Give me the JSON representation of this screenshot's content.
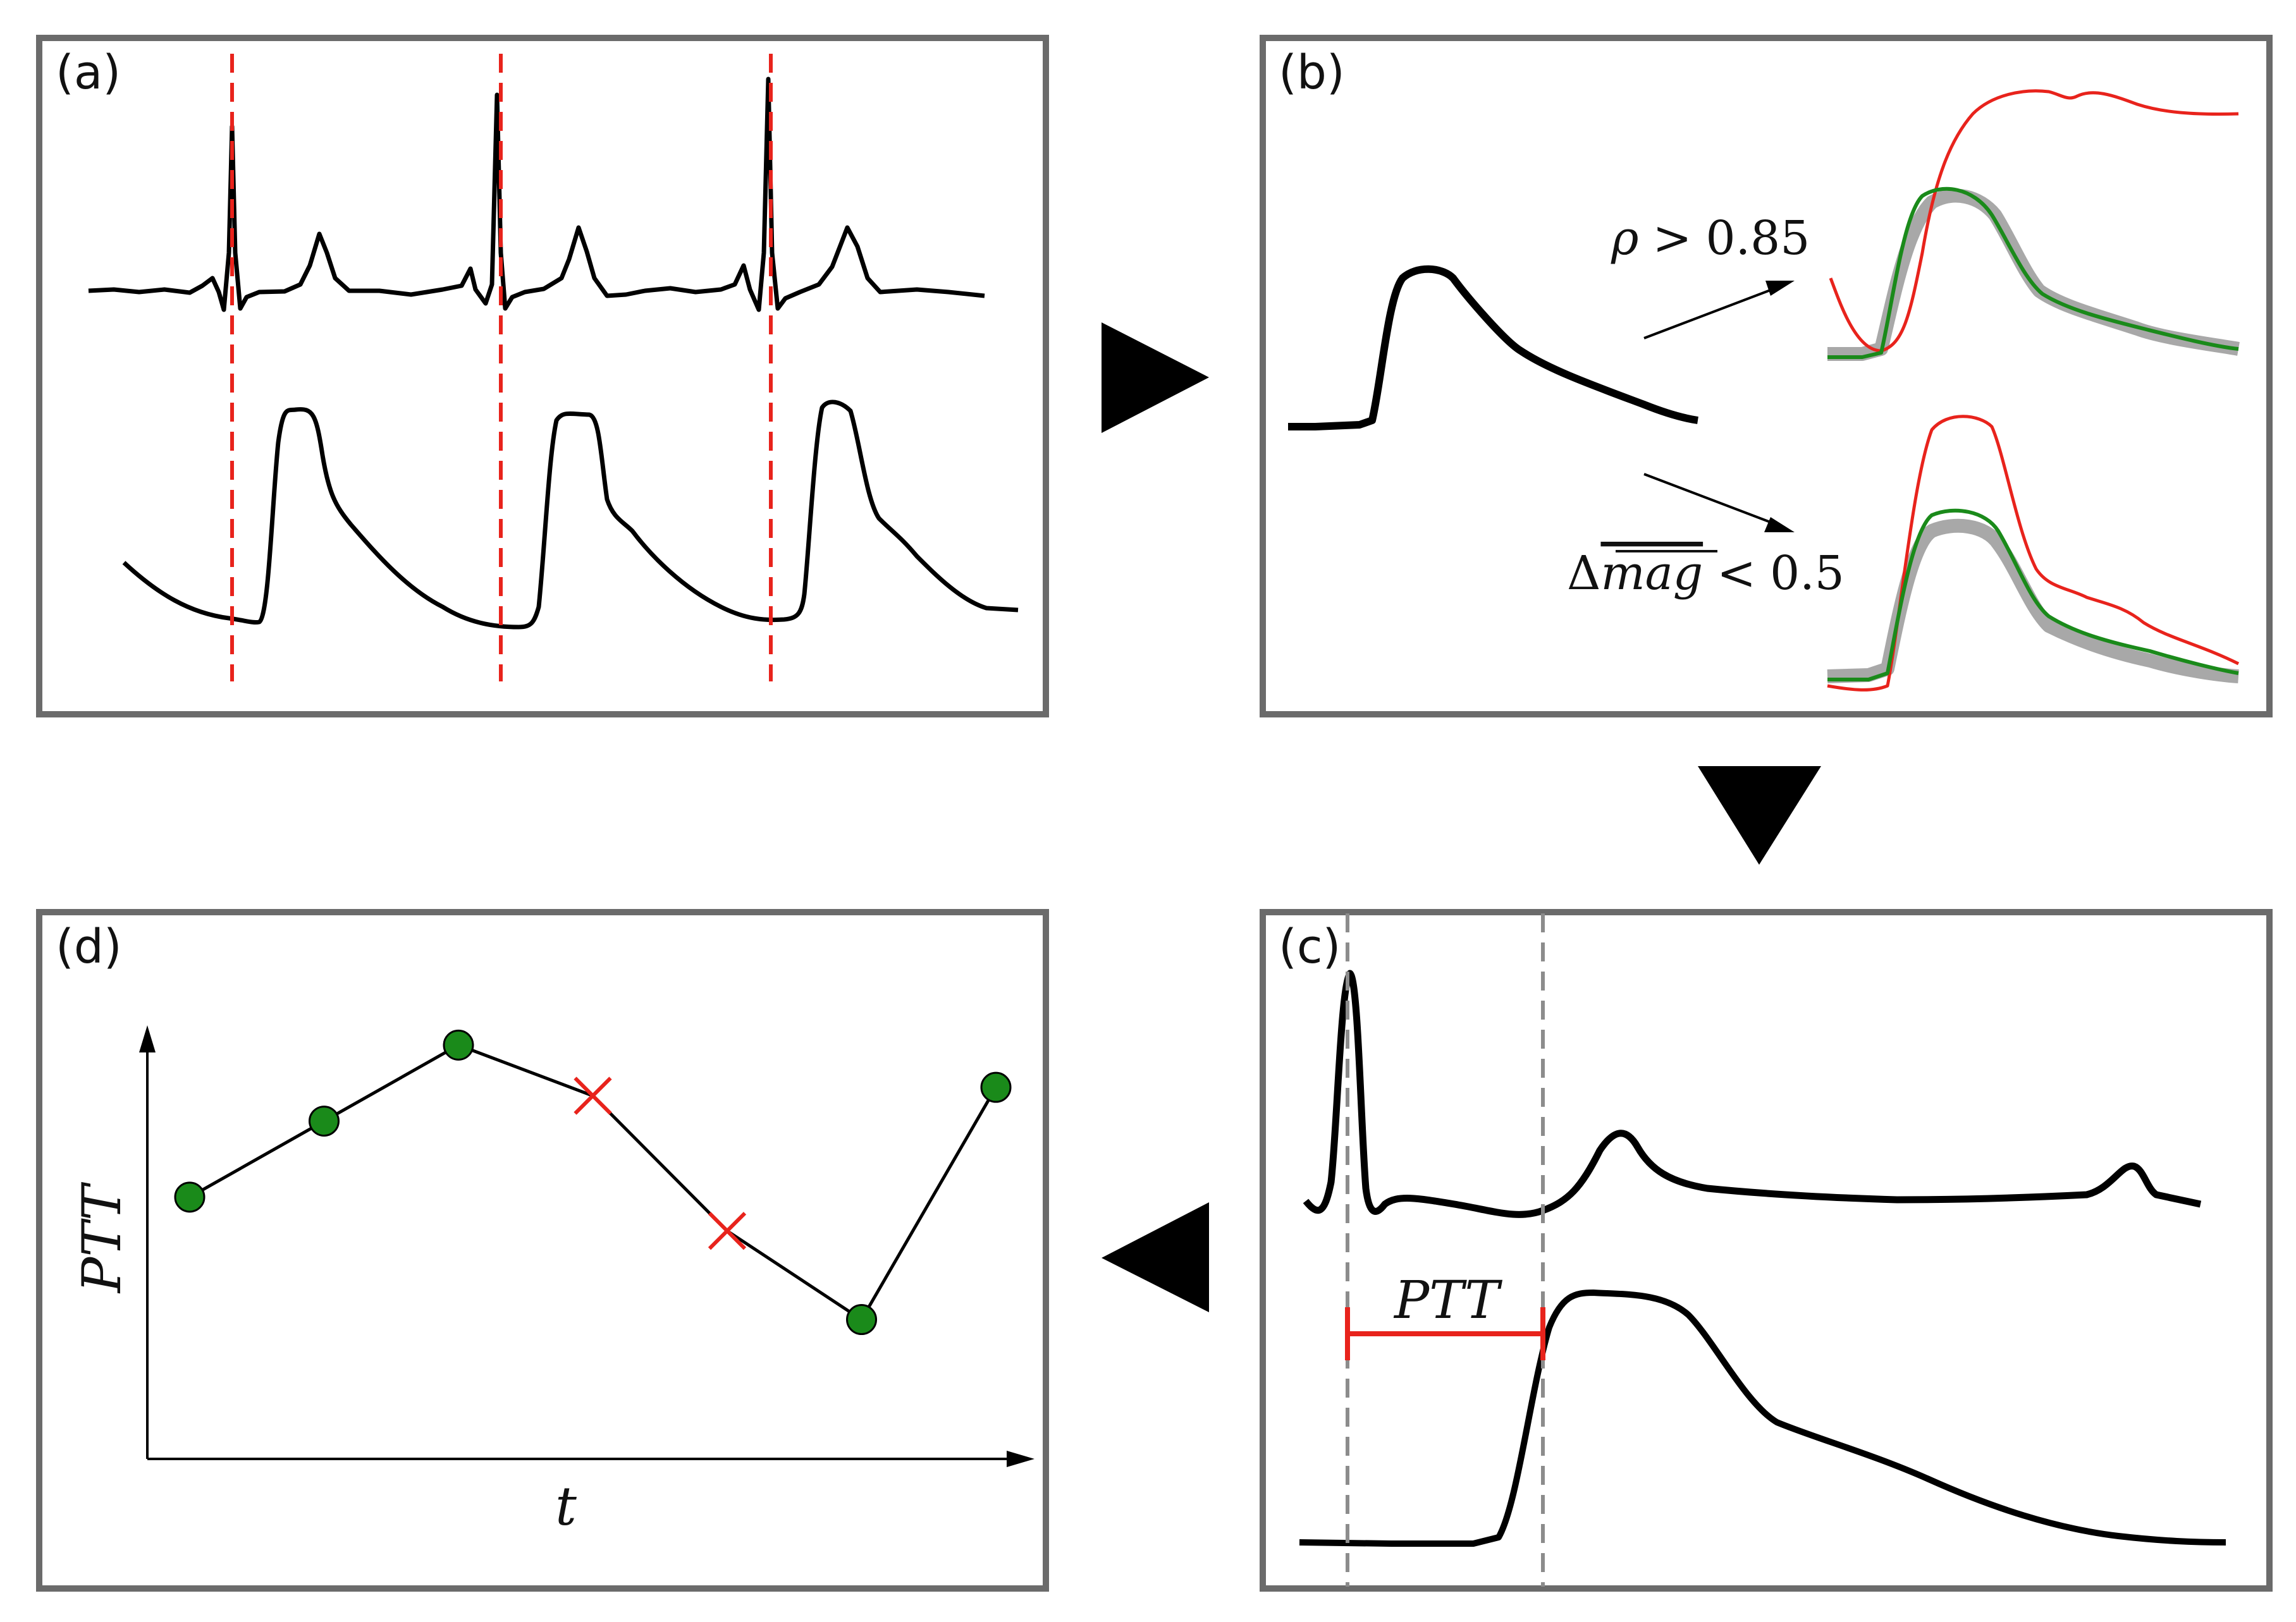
{
  "panels": {
    "a": {
      "label": "(a)"
    },
    "b": {
      "label": "(b)",
      "rule_corr": {
        "symbol": "ρ",
        "op": ">",
        "value": "0.85"
      },
      "rule_mag": {
        "symbol": "Δ",
        "overline": "mag",
        "op": "<",
        "value": "0.5"
      }
    },
    "c": {
      "label": "(c)",
      "interval_label": "PTT"
    },
    "d": {
      "label": "(d)",
      "ylabel": "PTT",
      "xlabel": "t",
      "points": [
        {
          "t": 0,
          "ptt": 0.62,
          "status": "accepted"
        },
        {
          "t": 1,
          "ptt": 0.8,
          "status": "accepted"
        },
        {
          "t": 2,
          "ptt": 0.98,
          "status": "accepted"
        },
        {
          "t": 3,
          "ptt": 0.86,
          "status": "rejected"
        },
        {
          "t": 4,
          "ptt": 0.54,
          "status": "rejected"
        },
        {
          "t": 5,
          "ptt": 0.33,
          "status": "accepted"
        },
        {
          "t": 6,
          "ptt": 0.88,
          "status": "accepted"
        }
      ]
    }
  },
  "colors": {
    "frame": "#6b6b6b",
    "signal": "#000000",
    "marker": "#e8231c",
    "accepted": "#1a8a1a",
    "template": "#a8a8a8",
    "guide": "#8c8c8c"
  }
}
